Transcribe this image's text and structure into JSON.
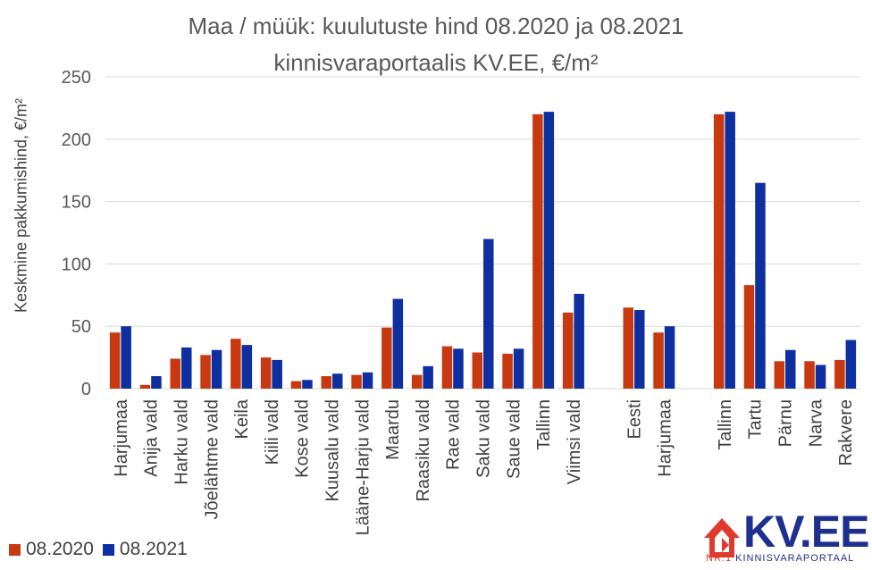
{
  "chart_data": {
    "type": "bar",
    "title_line1": "Maa / müük: kuulutuste hind 08.2020 ja 08.2021",
    "title_line2": "kinnisvaraportaalis KV.EE, €/m²",
    "ylabel": "Keskmine pakkumishind, €/m²",
    "xlabel": "",
    "ylim": [
      0,
      250
    ],
    "yticks": [
      "0",
      "50",
      "100",
      "150",
      "200",
      "250"
    ],
    "grid": true,
    "legend_position": "bottom-left",
    "categories": [
      "Harjumaa",
      "Anija vald",
      "Harku vald",
      "Jõelähtme vald",
      "Keila",
      "Kiili vald",
      "Kose vald",
      "Kuusalu vald",
      "Lääne-Harju vald",
      "Maardu",
      "Raasiku vald",
      "Rae vald",
      "Saku vald",
      "Saue vald",
      "Tallinn",
      "Viimsi vald",
      "",
      "Eesti",
      "Harjumaa",
      "",
      "Tallinn",
      "Tartu",
      "Pärnu",
      "Narva",
      "Rakvere"
    ],
    "series": [
      {
        "name": "08.2020",
        "color": "#c9390f",
        "values": [
          45,
          3,
          24,
          27,
          40,
          25,
          6,
          10,
          11,
          49,
          11,
          34,
          29,
          28,
          220,
          61,
          null,
          65,
          45,
          null,
          220,
          83,
          22,
          22,
          23
        ]
      },
      {
        "name": "08.2021",
        "color": "#0d2fa0",
        "values": [
          50,
          10,
          33,
          31,
          35,
          23,
          7,
          12,
          13,
          72,
          18,
          32,
          120,
          32,
          222,
          76,
          null,
          63,
          50,
          null,
          222,
          165,
          31,
          19,
          39
        ]
      }
    ]
  },
  "logo": {
    "name": "KV.EE",
    "tagline_nr": "NR.1",
    "tagline": "KINNISVARAPORTAAL"
  }
}
